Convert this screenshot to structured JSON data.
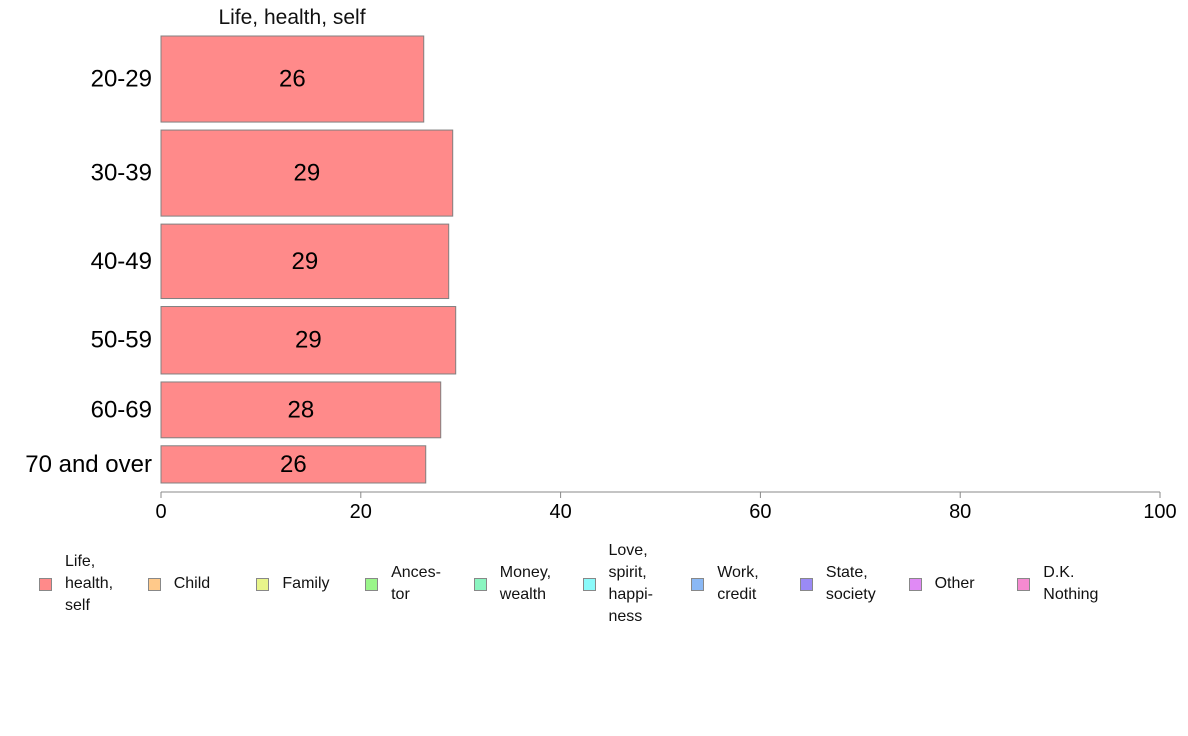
{
  "chart_data": {
    "type": "bar",
    "orientation": "horizontal",
    "title": "Life, health, self",
    "categories": [
      "20-29",
      "30-39",
      "40-49",
      "50-59",
      "60-69",
      "70 and over"
    ],
    "series": [
      {
        "name": "Life,\nhealth,\nself",
        "values": [
          26.3,
          29.2,
          28.8,
          29.5,
          28.0,
          26.5
        ],
        "labels": [
          "26",
          "29",
          "29",
          "29",
          "28",
          "26"
        ],
        "color": "#ff8a8a"
      }
    ],
    "category_shares": [
      0.185,
      0.185,
      0.16,
      0.145,
      0.12,
      0.08
    ],
    "xlim": [
      0,
      100
    ],
    "xticks": [
      0,
      20,
      40,
      60,
      80,
      100
    ],
    "xtick_labels": [
      "0",
      "20",
      "40",
      "60",
      "80",
      "100"
    ],
    "grid": false,
    "legend_position": "bottom"
  },
  "legend": {
    "items": [
      {
        "label": "Life,\nhealth,\nself",
        "color": "#ff8a8a"
      },
      {
        "label": "Child",
        "color": "#ffc98a"
      },
      {
        "label": "Family",
        "color": "#e8f58a"
      },
      {
        "label": "Ances-\ntor",
        "color": "#9af58a"
      },
      {
        "label": "Money,\nwealth",
        "color": "#8af5c0"
      },
      {
        "label": "Love,\nspirit,\nhappi-\nness",
        "color": "#8afafa"
      },
      {
        "label": "Work,\ncredit",
        "color": "#8ab8f5"
      },
      {
        "label": "State,\nsociety",
        "color": "#9a8af5"
      },
      {
        "label": "Other",
        "color": "#e08af5"
      },
      {
        "label": "D.K.\nNothing",
        "color": "#f58ad0"
      }
    ]
  }
}
